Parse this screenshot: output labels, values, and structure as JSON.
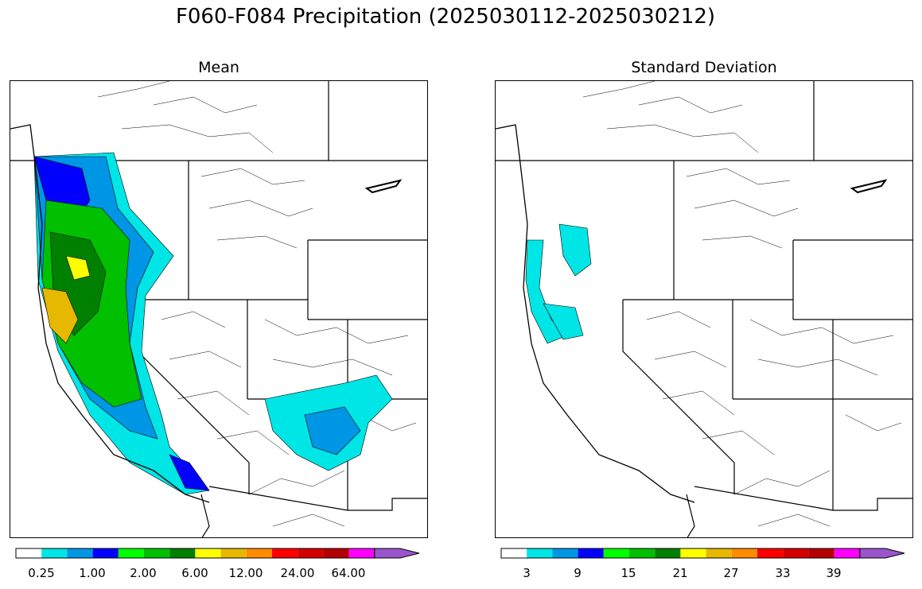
{
  "title": "F060-F084 Precipitation (2025030112-2025030212)",
  "panels": {
    "mean": {
      "title": "Mean",
      "tick_labels": [
        "0.25",
        "1.00",
        "2.00",
        "6.00",
        "12.00",
        "24.00",
        "64.00"
      ]
    },
    "std": {
      "title": "Standard Deviation",
      "tick_labels": [
        "3",
        "9",
        "15",
        "21",
        "27",
        "33",
        "39"
      ]
    }
  },
  "colorbar_colors": [
    "#ffffff",
    "#00e5e5",
    "#0096e6",
    "#0000ff",
    "#00ff00",
    "#00c000",
    "#008000",
    "#ffff00",
    "#e6b800",
    "#ff8c00",
    "#ff0000",
    "#d40000",
    "#b40000",
    "#ff00ff",
    "#9955cc"
  ],
  "colors": {
    "border": "#000000",
    "cyan": "#00e5e5",
    "blue": "#0096e6",
    "deep_blue": "#0000ff",
    "green": "#00c000",
    "lime": "#00ff00",
    "dark_green": "#008000",
    "yellow": "#ffff00",
    "gold": "#e6b800"
  }
}
